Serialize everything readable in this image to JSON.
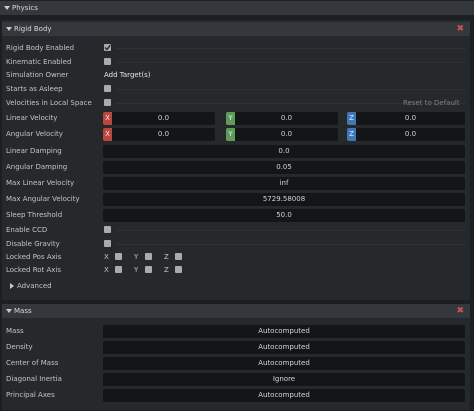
{
  "physics_header": "Physics",
  "rigid_body": {
    "title": "Rigid Body",
    "reset_label": "Reset to Default",
    "rows": [
      {
        "label": "Rigid Body Enabled",
        "checked": true
      },
      {
        "label": "Kinematic Enabled",
        "checked": false
      },
      {
        "label": "Simulation Owner",
        "button": "Add Target(s)"
      },
      {
        "label": "Starts as Asleep",
        "checked": false
      },
      {
        "label": "Velocities in Local Space",
        "checked": false
      },
      {
        "label": "Linear Velocity",
        "axes": [
          "X",
          "Y",
          "Z"
        ],
        "values": [
          "0.0",
          "0.0",
          "0.0"
        ]
      },
      {
        "label": "Angular Velocity",
        "axes": [
          "X",
          "Y",
          "Z"
        ],
        "values": [
          "0.0",
          "0.0",
          "0.0"
        ]
      },
      {
        "label": "Linear Damping",
        "value": "0.0"
      },
      {
        "label": "Angular Damping",
        "value": "0.05"
      },
      {
        "label": "Max Linear Velocity",
        "value": "inf"
      },
      {
        "label": "Max Angular Velocity",
        "value": "5729.58008"
      },
      {
        "label": "Sleep Threshold",
        "value": "50.0"
      },
      {
        "label": "Enable CCD",
        "checked": false
      },
      {
        "label": "Disable Gravity",
        "checked": false
      },
      {
        "label": "Locked Pos Axis",
        "locks": [
          {
            "axis": "X",
            "checked": false
          },
          {
            "axis": "Y",
            "checked": false
          },
          {
            "axis": "Z",
            "checked": false
          }
        ]
      },
      {
        "label": "Locked Rot Axis",
        "locks": [
          {
            "axis": "X",
            "checked": false
          },
          {
            "axis": "Y",
            "checked": false
          },
          {
            "axis": "Z",
            "checked": false
          }
        ]
      }
    ],
    "advanced": "Advanced"
  },
  "mass": {
    "title": "Mass",
    "rows": [
      {
        "label": "Mass",
        "value": "Autocomputed"
      },
      {
        "label": "Density",
        "value": "Autocomputed"
      },
      {
        "label": "Center of Mass",
        "value": "Autocomputed"
      },
      {
        "label": "Diagonal Inertia",
        "value": "Ignore"
      },
      {
        "label": "Principal Axes",
        "value": "Autocomputed"
      }
    ]
  }
}
